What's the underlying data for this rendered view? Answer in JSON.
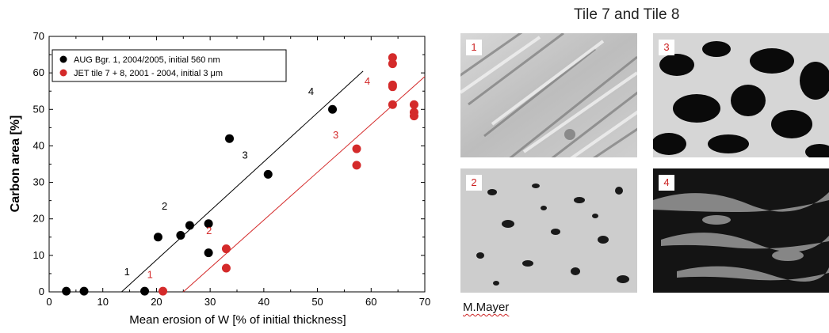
{
  "chart_data": {
    "type": "scatter",
    "xlabel": "Mean erosion of W [% of initial thickness]",
    "ylabel": "Carbon area [%]",
    "xlim": [
      0,
      70
    ],
    "ylim": [
      0,
      70
    ],
    "xticks": [
      "0",
      "10",
      "20",
      "30",
      "40",
      "50",
      "60",
      "70"
    ],
    "yticks": [
      "0",
      "10",
      "20",
      "30",
      "40",
      "50",
      "60",
      "70"
    ],
    "grid": false,
    "legend_position": "top-left",
    "series": [
      {
        "name": "AUG Bgr. 1, 2004/2005, initial 560 nm",
        "color": "#000000",
        "x": [
          3.2,
          6.5,
          17.8,
          20.3,
          24.5,
          26.2,
          29.7,
          29.7,
          33.6,
          40.8,
          52.8
        ],
        "y": [
          0.2,
          0.2,
          0.2,
          15.0,
          15.5,
          18.2,
          18.7,
          10.7,
          42.0,
          32.2,
          50.0
        ],
        "fit_line": {
          "x": [
            13.5,
            58.5
          ],
          "y": [
            0,
            60.5
          ]
        },
        "annotations": [
          {
            "text": "1",
            "x": 14.5,
            "y": 4.5
          },
          {
            "text": "2",
            "x": 21.5,
            "y": 22.5
          },
          {
            "text": "3",
            "x": 36.5,
            "y": 36.5
          },
          {
            "text": "4",
            "x": 48.8,
            "y": 54.0
          }
        ]
      },
      {
        "name": "JET tile 7 + 8, 2001 - 2004, initial  3 μm",
        "color": "#d42a2a",
        "x": [
          21.2,
          33.0,
          33.0,
          57.3,
          57.3,
          64.0,
          64.0,
          64.0,
          64.0,
          64.0,
          68.0,
          68.0,
          68.0
        ],
        "y": [
          0.2,
          11.8,
          6.5,
          39.2,
          34.7,
          64.2,
          62.5,
          56.7,
          56.2,
          51.3,
          51.3,
          49.2,
          48.2
        ],
        "fit_line": {
          "x": [
            25,
            70
          ],
          "y": [
            0,
            59
          ]
        },
        "annotations": [
          {
            "text": "1",
            "x": 18.8,
            "y": 3.8
          },
          {
            "text": "2",
            "x": 29.8,
            "y": 15.8
          },
          {
            "text": "3",
            "x": 53.4,
            "y": 42.0
          },
          {
            "text": "4",
            "x": 59.3,
            "y": 56.8
          }
        ]
      }
    ]
  },
  "images": {
    "title": "Tile 7 and Tile 8",
    "panels": [
      {
        "label": "1",
        "texture": "streaked-light"
      },
      {
        "label": "3",
        "texture": "dark-porous"
      },
      {
        "label": "2",
        "texture": "speckled-light"
      },
      {
        "label": "4",
        "texture": "dark-streaked"
      }
    ],
    "credit": "M.Mayer"
  }
}
